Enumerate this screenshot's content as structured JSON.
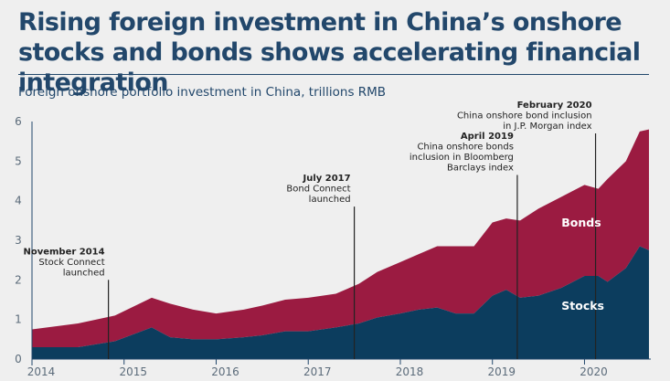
{
  "title": "Rising foreign investment in China’s onshore stocks and bonds shows accelerating financial integration",
  "subtitle": "Foreign onshore portfolio investment in China, trillions RMB",
  "colors": {
    "stocks": "#0c3d5e",
    "bonds": "#9b1b41",
    "text": "#22476b"
  },
  "chart_data": {
    "type": "area",
    "stacked": true,
    "ylim": [
      0,
      6
    ],
    "yticks": [
      "0",
      "1",
      "2",
      "3",
      "4",
      "5",
      "6"
    ],
    "xlim": [
      2014,
      2020.72
    ],
    "xticks": [
      {
        "v": 2014,
        "label": "2014"
      },
      {
        "v": 2015,
        "label": "2015"
      },
      {
        "v": 2016,
        "label": "2016"
      },
      {
        "v": 2017,
        "label": "2017"
      },
      {
        "v": 2018,
        "label": "2018"
      },
      {
        "v": 2019,
        "label": "2019"
      },
      {
        "v": 2020,
        "label": "2020"
      }
    ],
    "series": [
      {
        "name": "Stocks",
        "color": "#0c3d5e",
        "x": [
          2014.0,
          2014.5,
          2014.9,
          2015.3,
          2015.5,
          2015.75,
          2016.0,
          2016.3,
          2016.5,
          2016.75,
          2017.0,
          2017.3,
          2017.55,
          2017.75,
          2018.0,
          2018.2,
          2018.4,
          2018.6,
          2018.8,
          2019.0,
          2019.15,
          2019.3,
          2019.5,
          2019.75,
          2020.0,
          2020.15,
          2020.25,
          2020.45,
          2020.6,
          2020.7
        ],
        "values": [
          0.3,
          0.3,
          0.45,
          0.8,
          0.55,
          0.5,
          0.5,
          0.55,
          0.6,
          0.7,
          0.7,
          0.8,
          0.9,
          1.05,
          1.15,
          1.25,
          1.3,
          1.15,
          1.15,
          1.6,
          1.75,
          1.55,
          1.6,
          1.8,
          2.1,
          2.1,
          1.95,
          2.3,
          2.85,
          2.75
        ]
      },
      {
        "name": "Bonds",
        "color": "#9b1b41",
        "x": [
          2014.0,
          2014.5,
          2014.9,
          2015.3,
          2015.5,
          2015.75,
          2016.0,
          2016.3,
          2016.5,
          2016.75,
          2017.0,
          2017.3,
          2017.55,
          2017.75,
          2018.0,
          2018.2,
          2018.4,
          2018.6,
          2018.8,
          2019.0,
          2019.15,
          2019.3,
          2019.5,
          2019.75,
          2020.0,
          2020.15,
          2020.25,
          2020.45,
          2020.6,
          2020.7
        ],
        "values": [
          0.45,
          0.6,
          0.65,
          0.75,
          0.85,
          0.75,
          0.65,
          0.7,
          0.75,
          0.8,
          0.85,
          0.85,
          1.0,
          1.15,
          1.3,
          1.4,
          1.55,
          1.7,
          1.7,
          1.85,
          1.8,
          1.95,
          2.2,
          2.3,
          2.3,
          2.2,
          2.6,
          2.7,
          2.9,
          3.05
        ]
      }
    ],
    "series_labels": [
      {
        "text": "Bonds",
        "x": 2019.75,
        "y": 3.35
      },
      {
        "text": "Stocks",
        "x": 2019.75,
        "y": 1.25
      }
    ],
    "annotations": [
      {
        "x": 2014.83,
        "y_top": 2.0,
        "lines": [
          "November 2014",
          "Stock Connect",
          "launched"
        ]
      },
      {
        "x": 2017.5,
        "y_top": 3.85,
        "lines": [
          "July 2017",
          "Bond Connect",
          "launched"
        ]
      },
      {
        "x": 2019.27,
        "y_top": 4.65,
        "lines": [
          "April 2019",
          "China onshore bonds",
          "inclusion in Bloomberg",
          "Barclays index"
        ]
      },
      {
        "x": 2020.12,
        "y_top": 5.7,
        "lines": [
          "February 2020",
          "China onshore bond inclusion",
          "in J.P. Morgan index"
        ]
      }
    ]
  }
}
